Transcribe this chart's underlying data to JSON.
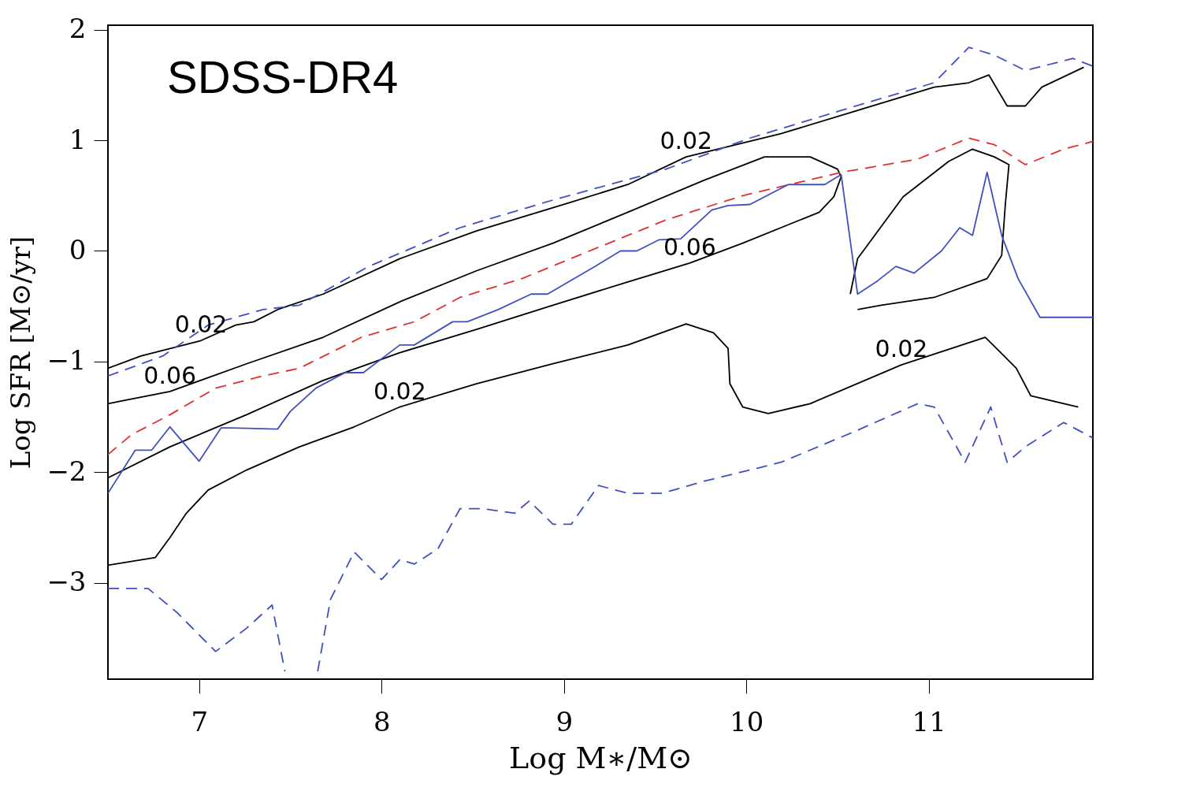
{
  "chart_data": {
    "type": "line",
    "xlabel": "Log M∗/M⊙",
    "ylabel": "Log SFR [M⊙/yr]",
    "xlim": [
      6.5,
      11.9
    ],
    "ylim": [
      -3.87,
      2.04
    ],
    "xticks": [
      7,
      8,
      9,
      10,
      11
    ],
    "yticks": [
      -3,
      -2,
      -1,
      0,
      1,
      2
    ],
    "annotations": [
      "SDSS-DR4",
      {
        "text": "0.02",
        "x": 7.01,
        "y": -0.81
      },
      {
        "text": "0.06",
        "x": 6.84,
        "y": -1.27
      },
      {
        "text": "0.02",
        "x": 8.1,
        "y": -1.41
      },
      {
        "text": "0.02",
        "x": 9.67,
        "y": 0.85
      },
      {
        "text": "0.06",
        "x": 9.69,
        "y": -0.11
      },
      {
        "text": "0.02",
        "x": 10.85,
        "y": -1.03
      }
    ],
    "grid": false,
    "series": [
      {
        "color": "#000000",
        "line_style": "solid",
        "x": [
          6.5,
          6.76,
          6.84,
          6.93,
          7.05,
          7.26,
          7.55,
          7.85,
          8.1,
          8.52,
          8.94,
          9.35,
          9.67,
          9.82,
          9.9,
          9.91,
          9.98,
          10.12,
          10.35,
          10.85,
          11.31,
          11.48,
          11.56,
          11.82
        ],
        "values": [
          -2.84,
          -2.77,
          -2.59,
          -2.37,
          -2.16,
          -1.98,
          -1.77,
          -1.59,
          -1.41,
          -1.2,
          -1.02,
          -0.85,
          -0.66,
          -0.74,
          -0.88,
          -1.2,
          -1.41,
          -1.47,
          -1.38,
          -1.03,
          -0.78,
          -1.06,
          -1.31,
          -1.41
        ]
      },
      {
        "color": "#000000",
        "line_style": "solid",
        "x": [
          6.5,
          6.68,
          7.01,
          7.2,
          7.3,
          7.43,
          7.68,
          8.1,
          8.52,
          8.94,
          9.35,
          9.67,
          10.19,
          10.61,
          11.03,
          11.22,
          11.33,
          11.43,
          11.53,
          11.62,
          11.85
        ],
        "values": [
          -1.06,
          -0.95,
          -0.81,
          -0.67,
          -0.64,
          -0.53,
          -0.39,
          -0.07,
          0.18,
          0.39,
          0.6,
          0.85,
          1.06,
          1.27,
          1.48,
          1.52,
          1.59,
          1.31,
          1.31,
          1.48,
          1.66
        ]
      },
      {
        "color": "#000000",
        "line_style": "solid",
        "x": [
          6.5,
          6.84,
          7.26,
          7.68,
          8.1,
          8.52,
          8.94,
          9.35,
          9.77,
          10.1,
          10.35,
          10.5,
          10.52,
          10.48,
          10.4,
          9.98,
          9.69,
          9.35,
          8.94,
          8.52,
          8.1,
          7.68,
          7.26,
          6.84,
          6.5
        ],
        "values": [
          -1.38,
          -1.27,
          -1.02,
          -0.78,
          -0.46,
          -0.18,
          0.07,
          0.35,
          0.64,
          0.85,
          0.85,
          0.74,
          0.67,
          0.49,
          0.35,
          0.07,
          -0.11,
          -0.28,
          -0.49,
          -0.71,
          -0.92,
          -1.17,
          -1.48,
          -1.77,
          -2.05
        ]
      },
      {
        "color": "#000000",
        "line_style": "solid",
        "x": [
          10.57,
          10.61,
          10.86,
          11.11,
          11.24,
          11.36,
          11.44,
          11.42,
          11.4,
          11.32,
          11.03,
          10.74,
          10.61
        ],
        "values": [
          -0.39,
          -0.07,
          0.49,
          0.81,
          0.92,
          0.85,
          0.78,
          0.42,
          -0.04,
          -0.25,
          -0.42,
          -0.49,
          -0.53
        ]
      },
      {
        "color": "#4050c0",
        "line_style": "dashed",
        "x": [
          6.5,
          6.8,
          7.05,
          7.35,
          7.55,
          7.93,
          8.43,
          8.94,
          9.56,
          10.02,
          10.52,
          11.03,
          11.22,
          11.36,
          11.53,
          11.79,
          11.9
        ],
        "values": [
          -1.13,
          -0.95,
          -0.67,
          -0.53,
          -0.49,
          -0.14,
          0.21,
          0.46,
          0.74,
          1.02,
          1.27,
          1.52,
          1.84,
          1.77,
          1.63,
          1.74,
          1.67
        ]
      },
      {
        "color": "#e03030",
        "line_style": "dashed",
        "x": [
          6.5,
          6.63,
          6.84,
          7.09,
          7.35,
          7.55,
          7.72,
          7.89,
          8.18,
          8.43,
          8.77,
          9.14,
          9.56,
          9.98,
          10.52,
          10.94,
          11.22,
          11.36,
          11.53,
          11.74,
          11.9
        ],
        "values": [
          -1.84,
          -1.66,
          -1.48,
          -1.24,
          -1.13,
          -1.06,
          -0.92,
          -0.78,
          -0.64,
          -0.42,
          -0.25,
          0,
          0.28,
          0.5,
          0.71,
          0.83,
          1.02,
          0.96,
          0.78,
          0.92,
          0.99
        ]
      },
      {
        "color": "#4050c0",
        "line_style": "solid",
        "x": [
          6.5,
          6.65,
          6.74,
          6.84,
          7.0,
          7.12,
          7.18,
          7.43,
          7.5,
          7.64,
          7.8,
          7.9,
          8.1,
          8.18,
          8.39,
          8.47,
          8.64,
          8.82,
          8.91,
          9.17,
          9.31,
          9.4,
          9.52,
          9.64,
          9.81,
          9.9,
          10.02,
          10.23,
          10.43,
          10.52,
          10.61,
          10.72,
          10.82,
          10.92,
          11.07,
          11.17,
          11.24,
          11.32,
          11.4,
          11.49,
          11.61,
          11.9
        ],
        "values": [
          -2.19,
          -1.8,
          -1.8,
          -1.59,
          -1.9,
          -1.6,
          -1.6,
          -1.61,
          -1.45,
          -1.24,
          -1.1,
          -1.1,
          -0.85,
          -0.85,
          -0.64,
          -0.64,
          -0.53,
          -0.39,
          -0.39,
          -0.14,
          0,
          0,
          0.1,
          0.11,
          0.37,
          0.41,
          0.42,
          0.6,
          0.6,
          0.69,
          -0.39,
          -0.27,
          -0.14,
          -0.2,
          0,
          0.21,
          0.14,
          0.71,
          0.14,
          -0.25,
          -0.6,
          -0.6
        ]
      },
      {
        "color": "#4050c0",
        "line_style": "dashed",
        "x": [
          6.5,
          6.72,
          6.88,
          7.09,
          7.26,
          7.4,
          7.47,
          7.56,
          7.65,
          7.72,
          7.85,
          8.0,
          8.1,
          8.18,
          8.31,
          8.43,
          8.56,
          8.73,
          8.81,
          8.94,
          9.04,
          9.19,
          9.35,
          9.54,
          9.77,
          10.02,
          10.19,
          10.61,
          10.94,
          11.03,
          11.2,
          11.34,
          11.43,
          11.53,
          11.74,
          11.9
        ],
        "values": [
          -3.05,
          -3.05,
          -3.27,
          -3.62,
          -3.41,
          -3.2,
          -3.8,
          null,
          -3.8,
          -3.15,
          -2.72,
          -2.97,
          -2.79,
          -2.83,
          -2.69,
          -2.33,
          -2.33,
          -2.37,
          -2.26,
          -2.47,
          -2.47,
          -2.12,
          -2.19,
          -2.19,
          -2.08,
          -1.98,
          -1.91,
          -1.62,
          -1.38,
          -1.41,
          -1.91,
          -1.41,
          -1.91,
          -1.77,
          -1.55,
          -1.69
        ]
      }
    ]
  }
}
